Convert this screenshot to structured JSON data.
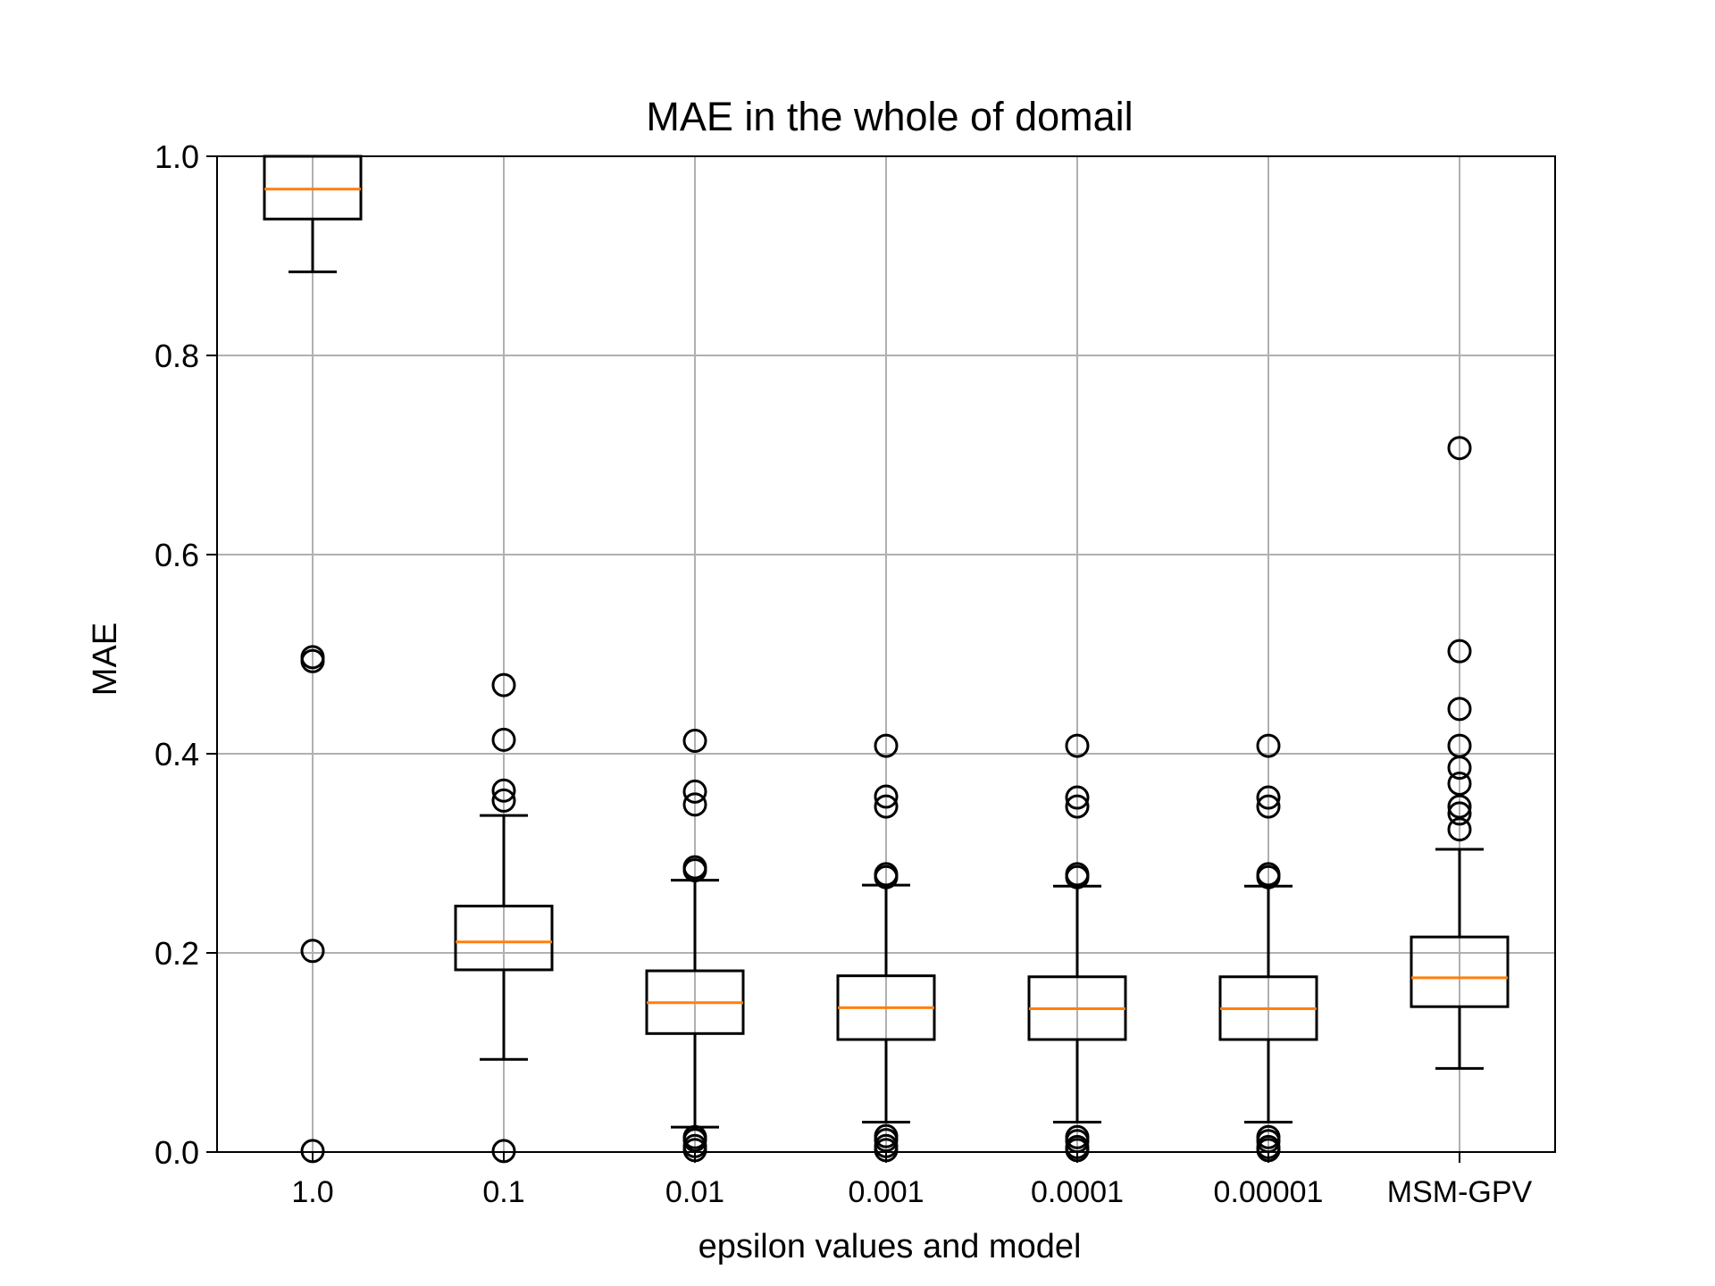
{
  "chart_data": {
    "type": "boxplot",
    "title": "MAE in the whole of domail",
    "xlabel": "epsilon values and model",
    "ylabel": "MAE",
    "ylim": [
      0.0,
      1.0
    ],
    "yticks": [
      0.0,
      0.2,
      0.4,
      0.6,
      0.8,
      1.0
    ],
    "ytick_labels": [
      "0.0",
      "0.2",
      "0.4",
      "0.6",
      "0.8",
      "1.0"
    ],
    "grid": true,
    "categories": [
      "1.0",
      "0.1",
      "0.01",
      "0.001",
      "0.0001",
      "0.00001",
      "MSM-GPV"
    ],
    "boxes": [
      {
        "q1": 0.937,
        "median": 0.967,
        "q3": 1.0,
        "whisker_low": 0.884,
        "whisker_high": 1.0,
        "outliers": [
          0.497,
          0.493,
          0.202,
          0.001
        ]
      },
      {
        "q1": 0.183,
        "median": 0.211,
        "q3": 0.247,
        "whisker_low": 0.093,
        "whisker_high": 0.338,
        "outliers": [
          0.469,
          0.414,
          0.363,
          0.353,
          0.001
        ]
      },
      {
        "q1": 0.119,
        "median": 0.15,
        "q3": 0.182,
        "whisker_low": 0.025,
        "whisker_high": 0.273,
        "outliers": [
          0.413,
          0.362,
          0.349,
          0.286,
          0.283,
          0.015,
          0.012,
          0.006,
          0.002
        ]
      },
      {
        "q1": 0.113,
        "median": 0.145,
        "q3": 0.177,
        "whisker_low": 0.03,
        "whisker_high": 0.268,
        "outliers": [
          0.408,
          0.357,
          0.347,
          0.279,
          0.276,
          0.016,
          0.012,
          0.006,
          0.002
        ]
      },
      {
        "q1": 0.113,
        "median": 0.144,
        "q3": 0.176,
        "whisker_low": 0.03,
        "whisker_high": 0.267,
        "outliers": [
          0.408,
          0.356,
          0.347,
          0.279,
          0.276,
          0.015,
          0.011,
          0.005,
          0.002
        ]
      },
      {
        "q1": 0.113,
        "median": 0.144,
        "q3": 0.176,
        "whisker_low": 0.03,
        "whisker_high": 0.267,
        "outliers": [
          0.408,
          0.356,
          0.347,
          0.279,
          0.276,
          0.015,
          0.011,
          0.005,
          0.002
        ]
      },
      {
        "q1": 0.146,
        "median": 0.175,
        "q3": 0.216,
        "whisker_low": 0.084,
        "whisker_high": 0.304,
        "outliers": [
          0.707,
          0.503,
          0.445,
          0.408,
          0.386,
          0.37,
          0.347,
          0.34,
          0.324
        ]
      }
    ],
    "colors": {
      "box": "#000000",
      "median": "#ff7f0e",
      "grid": "#b0b0b0"
    }
  }
}
